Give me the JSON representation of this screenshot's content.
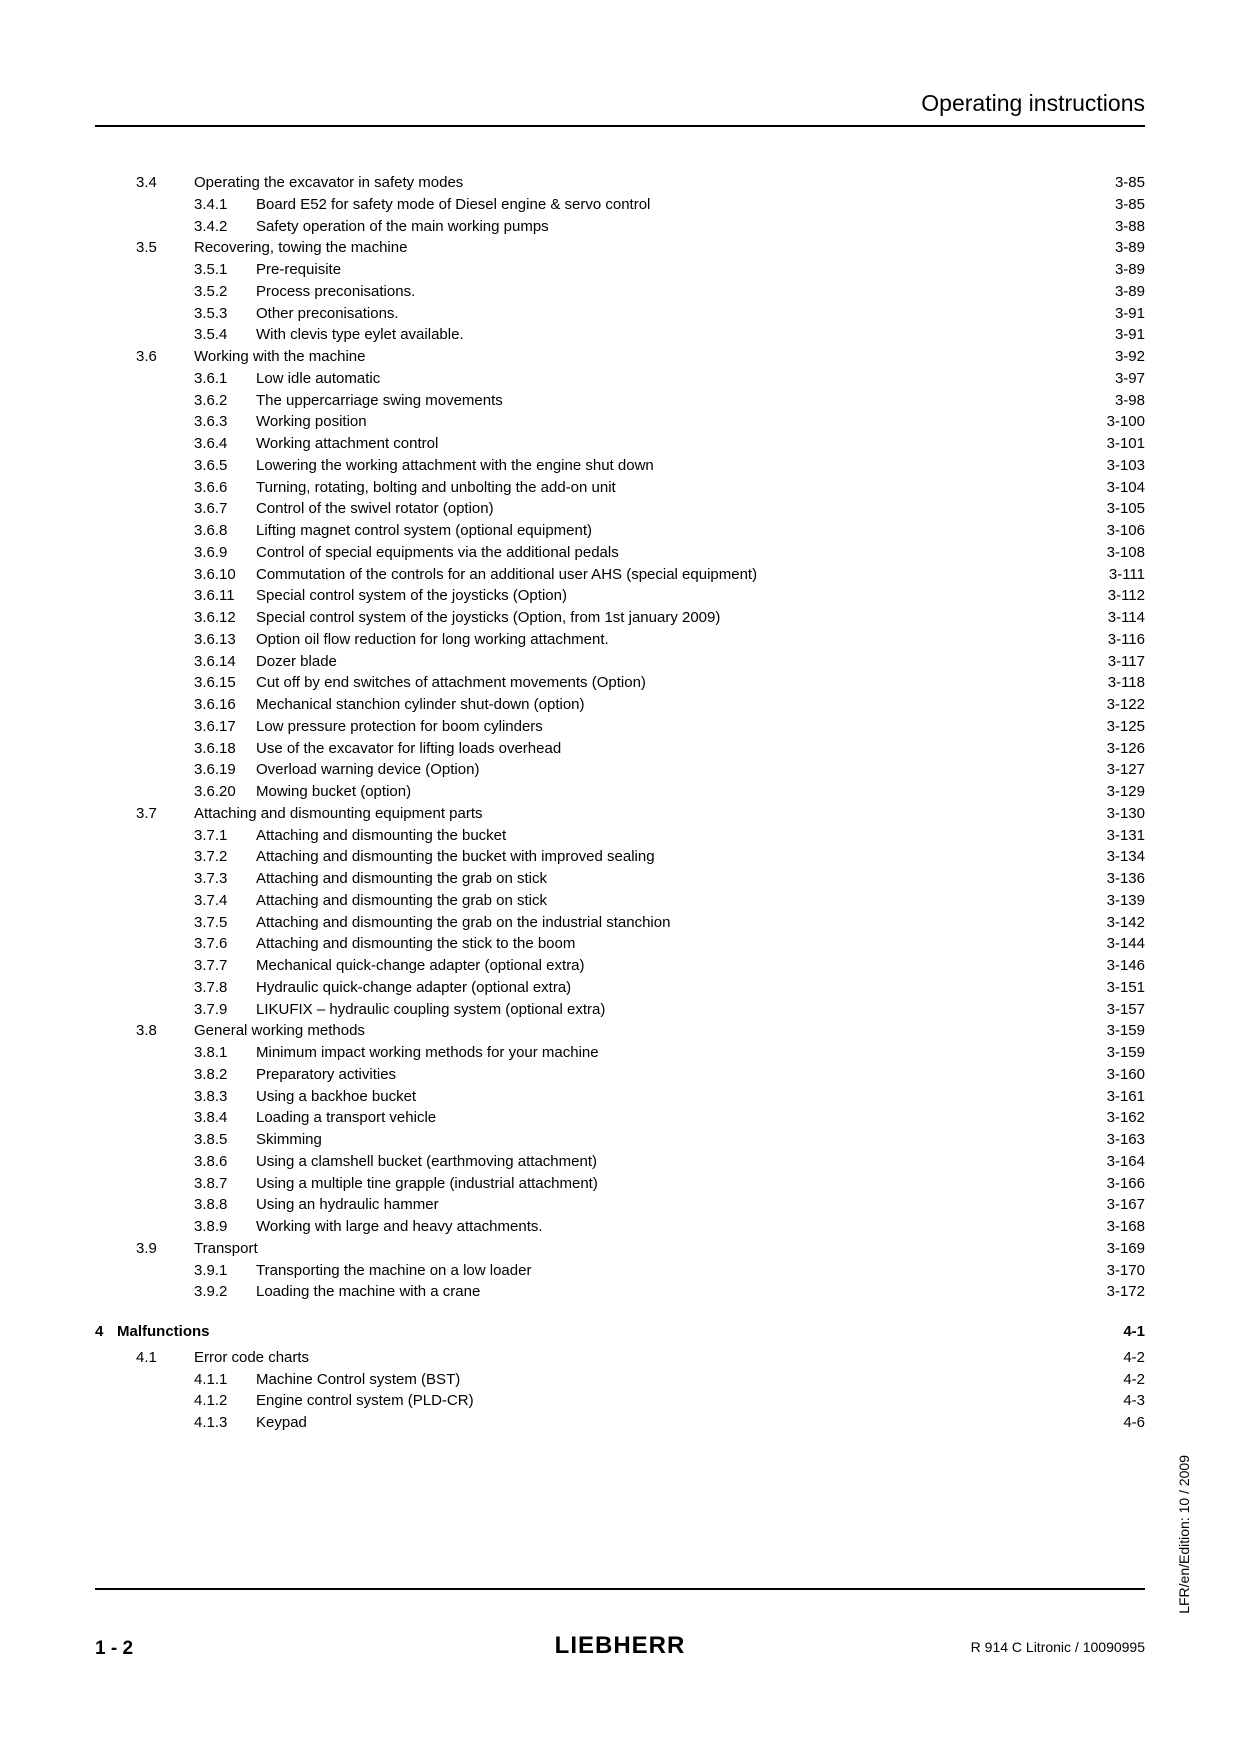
{
  "header": {
    "title": "Operating instructions"
  },
  "toc": [
    {
      "lvl": 2,
      "num": "3.4",
      "title": "Operating the excavator in safety modes",
      "page": "3-85"
    },
    {
      "lvl": 3,
      "num": "3.4.1",
      "title": "Board E52 for safety mode of Diesel engine & servo control",
      "page": "3-85"
    },
    {
      "lvl": 3,
      "num": "3.4.2",
      "title": "Safety operation of the main working pumps",
      "page": "3-88"
    },
    {
      "lvl": 2,
      "num": "3.5",
      "title": "Recovering, towing the machine",
      "page": "3-89"
    },
    {
      "lvl": 3,
      "num": "3.5.1",
      "title": "Pre-requisite",
      "page": "3-89"
    },
    {
      "lvl": 3,
      "num": "3.5.2",
      "title": "Process preconisations.",
      "page": "3-89"
    },
    {
      "lvl": 3,
      "num": "3.5.3",
      "title": "Other preconisations.",
      "page": "3-91"
    },
    {
      "lvl": 3,
      "num": "3.5.4",
      "title": "With clevis type eylet available.",
      "page": "3-91"
    },
    {
      "lvl": 2,
      "num": "3.6",
      "title": "Working with the machine",
      "page": "3-92"
    },
    {
      "lvl": 3,
      "num": "3.6.1",
      "title": "Low idle automatic",
      "page": "3-97"
    },
    {
      "lvl": 3,
      "num": "3.6.2",
      "title": "The uppercarriage swing movements",
      "page": "3-98"
    },
    {
      "lvl": 3,
      "num": "3.6.3",
      "title": "Working position",
      "page": "3-100"
    },
    {
      "lvl": 3,
      "num": "3.6.4",
      "title": "Working attachment control",
      "page": "3-101"
    },
    {
      "lvl": 3,
      "num": "3.6.5",
      "title": "Lowering the working attachment with the engine shut down",
      "page": "3-103"
    },
    {
      "lvl": 3,
      "num": "3.6.6",
      "title": "Turning, rotating, bolting and unbolting the add-on unit",
      "page": "3-104"
    },
    {
      "lvl": 3,
      "num": "3.6.7",
      "title": "Control of the swivel rotator (option)",
      "page": "3-105"
    },
    {
      "lvl": 3,
      "num": "3.6.8",
      "title": "Lifting magnet control system (optional equipment)",
      "page": "3-106"
    },
    {
      "lvl": 3,
      "num": "3.6.9",
      "title": "Control of special equipments via the additional pedals",
      "page": "3-108"
    },
    {
      "lvl": 3,
      "num": "3.6.10",
      "title": "Commutation of the controls for an additional user AHS (special equipment)",
      "page": "3-111"
    },
    {
      "lvl": 3,
      "num": "3.6.11",
      "title": "Special control system of the joysticks (Option)",
      "page": "3-112"
    },
    {
      "lvl": 3,
      "num": "3.6.12",
      "title": "Special control system of the joysticks (Option, from 1st january 2009)",
      "page": "3-114"
    },
    {
      "lvl": 3,
      "num": "3.6.13",
      "title": "Option oil flow reduction for long working attachment.",
      "page": "3-116"
    },
    {
      "lvl": 3,
      "num": "3.6.14",
      "title": "Dozer blade",
      "page": "3-117"
    },
    {
      "lvl": 3,
      "num": "3.6.15",
      "title": "Cut off by end switches of attachment movements (Option)",
      "page": "3-118"
    },
    {
      "lvl": 3,
      "num": "3.6.16",
      "title": "Mechanical stanchion cylinder shut-down (option)",
      "page": "3-122"
    },
    {
      "lvl": 3,
      "num": "3.6.17",
      "title": "Low pressure protection for boom cylinders",
      "page": "3-125"
    },
    {
      "lvl": 3,
      "num": "3.6.18",
      "title": "Use of the excavator for lifting loads overhead",
      "page": "3-126"
    },
    {
      "lvl": 3,
      "num": "3.6.19",
      "title": "Overload warning device (Option)",
      "page": "3-127"
    },
    {
      "lvl": 3,
      "num": "3.6.20",
      "title": "Mowing bucket (option)",
      "page": "3-129"
    },
    {
      "lvl": 2,
      "num": "3.7",
      "title": "Attaching and dismounting equipment parts",
      "page": "3-130"
    },
    {
      "lvl": 3,
      "num": "3.7.1",
      "title": "Attaching and dismounting the bucket",
      "page": "3-131"
    },
    {
      "lvl": 3,
      "num": "3.7.2",
      "title": "Attaching and dismounting the bucket with improved sealing",
      "page": "3-134"
    },
    {
      "lvl": 3,
      "num": "3.7.3",
      "title": "Attaching and dismounting the grab on stick",
      "page": "3-136"
    },
    {
      "lvl": 3,
      "num": "3.7.4",
      "title": "Attaching and dismounting the grab on stick",
      "page": "3-139"
    },
    {
      "lvl": 3,
      "num": "3.7.5",
      "title": "Attaching and dismounting the grab on the industrial stanchion",
      "page": "3-142"
    },
    {
      "lvl": 3,
      "num": "3.7.6",
      "title": "Attaching and dismounting the stick to the boom",
      "page": "3-144"
    },
    {
      "lvl": 3,
      "num": "3.7.7",
      "title": "Mechanical quick-change adapter (optional extra)",
      "page": "3-146"
    },
    {
      "lvl": 3,
      "num": "3.7.8",
      "title": "Hydraulic quick-change adapter (optional extra)",
      "page": "3-151"
    },
    {
      "lvl": 3,
      "num": "3.7.9",
      "title": "LIKUFIX – hydraulic coupling system (optional extra)",
      "page": "3-157"
    },
    {
      "lvl": 2,
      "num": "3.8",
      "title": "General working methods",
      "page": "3-159"
    },
    {
      "lvl": 3,
      "num": "3.8.1",
      "title": "Minimum impact working methods for your machine",
      "page": "3-159"
    },
    {
      "lvl": 3,
      "num": "3.8.2",
      "title": "Preparatory activities",
      "page": "3-160"
    },
    {
      "lvl": 3,
      "num": "3.8.3",
      "title": "Using a backhoe bucket",
      "page": "3-161"
    },
    {
      "lvl": 3,
      "num": "3.8.4",
      "title": "Loading a transport vehicle",
      "page": "3-162"
    },
    {
      "lvl": 3,
      "num": "3.8.5",
      "title": "Skimming",
      "page": "3-163"
    },
    {
      "lvl": 3,
      "num": "3.8.6",
      "title": "Using a clamshell bucket (earthmoving attachment)",
      "page": "3-164"
    },
    {
      "lvl": 3,
      "num": "3.8.7",
      "title": "Using a multiple tine grapple (industrial attachment)",
      "page": "3-166"
    },
    {
      "lvl": 3,
      "num": "3.8.8",
      "title": "Using an hydraulic hammer",
      "page": "3-167"
    },
    {
      "lvl": 3,
      "num": "3.8.9",
      "title": "Working with large and heavy attachments.",
      "page": "3-168"
    },
    {
      "lvl": 2,
      "num": "3.9",
      "title": "Transport",
      "page": "3-169"
    },
    {
      "lvl": 3,
      "num": "3.9.1",
      "title": "Transporting the machine on a low loader",
      "page": "3-170"
    },
    {
      "lvl": 3,
      "num": "3.9.2",
      "title": "Loading the machine with a crane",
      "page": "3-172"
    },
    {
      "lvl": 1,
      "num": "4",
      "title": "Malfunctions",
      "page": "4-1",
      "chapter": true
    },
    {
      "lvl": 2,
      "num": "4.1",
      "title": "Error code charts",
      "page": "4-2"
    },
    {
      "lvl": 3,
      "num": "4.1.1",
      "title": "Machine Control system (BST)",
      "page": "4-2"
    },
    {
      "lvl": 3,
      "num": "4.1.2",
      "title": "Engine control system (PLD-CR)",
      "page": "4-3"
    },
    {
      "lvl": 3,
      "num": "4.1.3",
      "title": "Keypad",
      "page": "4-6"
    }
  ],
  "footer": {
    "side": "LFR/en/Edition: 10 / 2009",
    "pagenum": "1 - 2",
    "brand": "LIEBHERR",
    "docid": "R 914 C Litronic / 10090995"
  }
}
